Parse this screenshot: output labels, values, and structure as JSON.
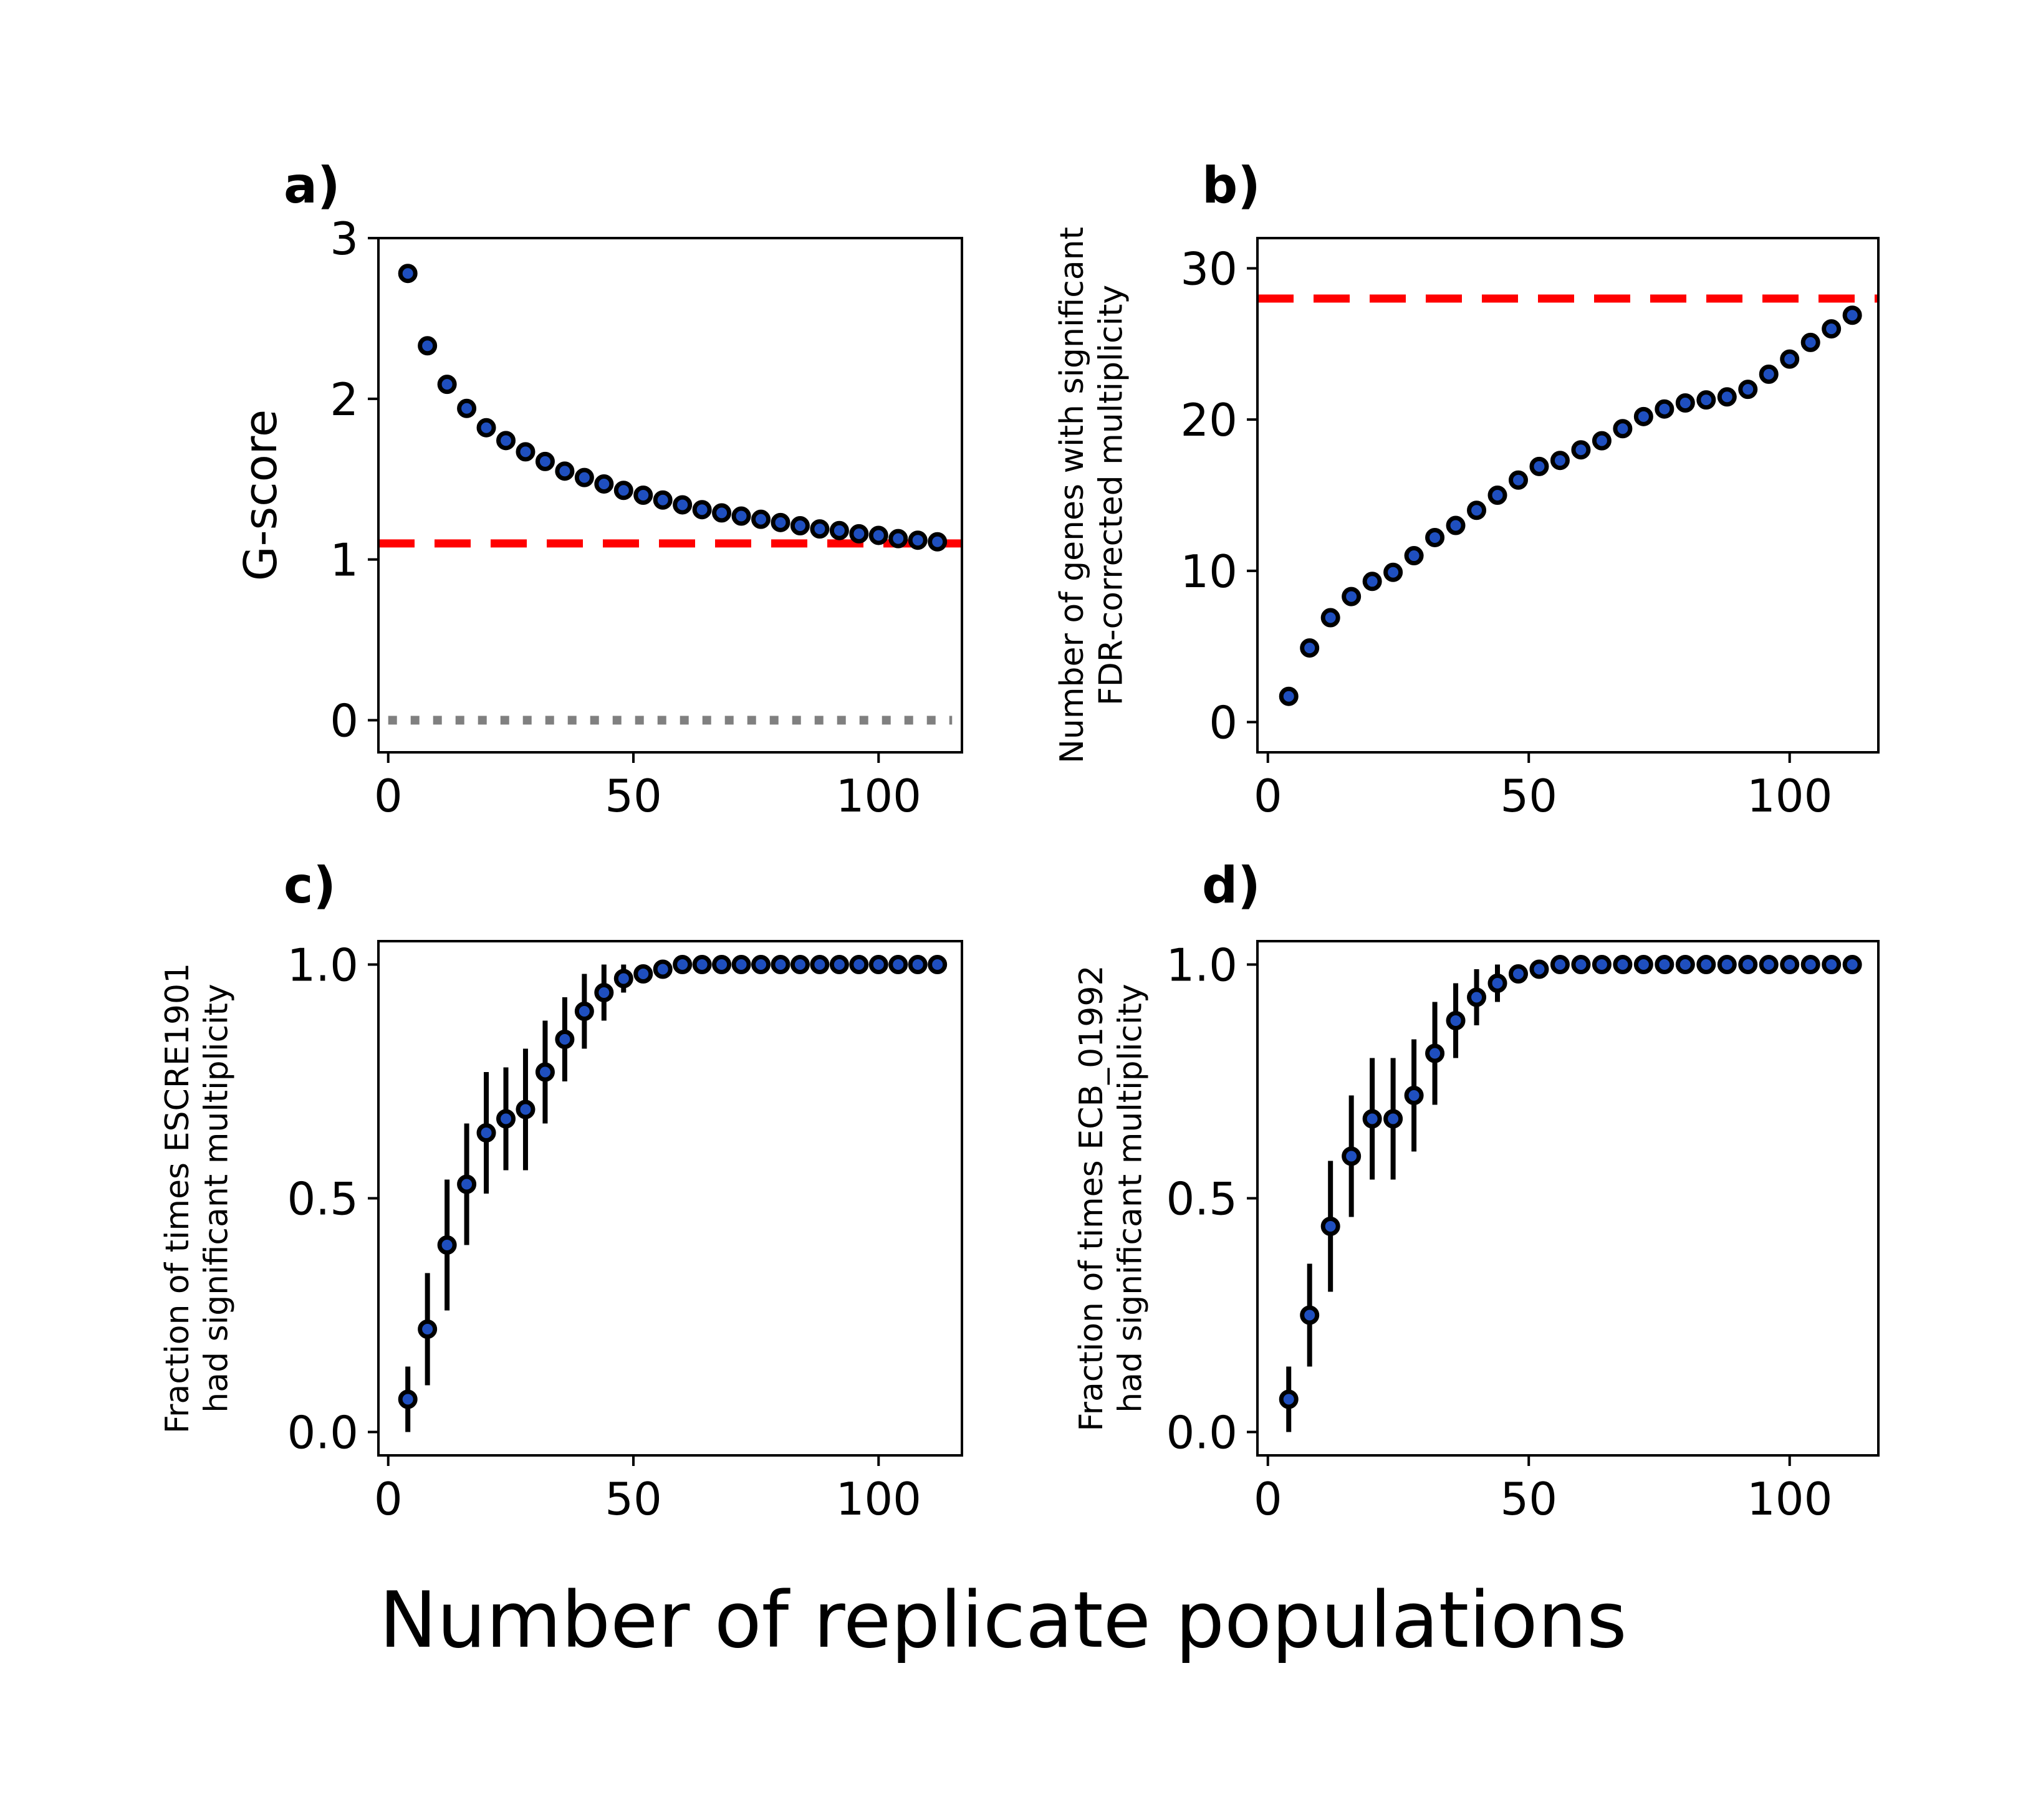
{
  "figure": {
    "xlabel": "Number of replicate populations"
  },
  "chart_data": [
    {
      "type": "scatter",
      "panel_label": "a)",
      "title": "",
      "xlabel": "",
      "ylabel": "G-score",
      "xlim": [
        -2,
        117
      ],
      "ylim": [
        -0.2,
        3
      ],
      "xticks": [
        0,
        50,
        100
      ],
      "yticks": [
        0,
        1,
        2,
        3
      ],
      "xtick_labels": [
        "0",
        "50",
        "100"
      ],
      "ytick_labels": [
        "0",
        "1",
        "2",
        "3"
      ],
      "grid": false,
      "x": [
        4,
        8,
        12,
        16,
        20,
        24,
        28,
        32,
        36,
        40,
        44,
        48,
        52,
        56,
        60,
        64,
        68,
        72,
        76,
        80,
        84,
        88,
        92,
        96,
        100,
        104,
        108,
        112
      ],
      "y": [
        2.78,
        2.33,
        2.09,
        1.94,
        1.82,
        1.74,
        1.67,
        1.61,
        1.55,
        1.51,
        1.47,
        1.43,
        1.4,
        1.37,
        1.34,
        1.31,
        1.29,
        1.27,
        1.25,
        1.23,
        1.21,
        1.19,
        1.18,
        1.16,
        1.15,
        1.13,
        1.12,
        1.11
      ],
      "yerr": [
        0.04,
        0.02,
        0.02,
        0.01,
        0.01,
        0.01,
        0.01,
        0.01,
        0.01,
        0.01,
        0.01,
        0.01,
        0.01,
        0.01,
        0.01,
        0.01,
        0.01,
        0.01,
        0.01,
        0.01,
        0.01,
        0.01,
        0.01,
        0.01,
        0.01,
        0.01,
        0.01,
        0.01
      ],
      "hlines": [
        {
          "y": 1.1,
          "color": "#ff0000",
          "style": "dashed"
        },
        {
          "y": 0,
          "color": "#808080",
          "style": "dotted",
          "x_from": 0,
          "x_to": 115
        }
      ],
      "marker_color": "#1f4fbf"
    },
    {
      "type": "scatter",
      "panel_label": "b)",
      "title": "",
      "xlabel": "",
      "ylabel": "Number of genes with significant\nFDR-corrected multiplicity",
      "xlim": [
        -2,
        117
      ],
      "ylim": [
        -2,
        32
      ],
      "xticks": [
        0,
        50,
        100
      ],
      "yticks": [
        0,
        10,
        20,
        30
      ],
      "xtick_labels": [
        "0",
        "50",
        "100"
      ],
      "ytick_labels": [
        "0",
        "10",
        "20",
        "30"
      ],
      "grid": false,
      "x": [
        4,
        8,
        12,
        16,
        20,
        24,
        28,
        32,
        36,
        40,
        44,
        48,
        52,
        56,
        60,
        64,
        68,
        72,
        76,
        80,
        84,
        88,
        92,
        96,
        100,
        104,
        108,
        112
      ],
      "y": [
        1.7,
        4.9,
        6.9,
        8.3,
        9.3,
        9.9,
        11.0,
        12.2,
        13.0,
        14.0,
        15.0,
        16.0,
        16.9,
        17.3,
        18.0,
        18.6,
        19.4,
        20.2,
        20.7,
        21.1,
        21.3,
        21.5,
        22.0,
        23.0,
        24.0,
        25.1,
        26.0,
        26.9
      ],
      "hlines": [
        {
          "y": 28,
          "color": "#ff0000",
          "style": "dashed"
        }
      ],
      "marker_color": "#1f4fbf"
    },
    {
      "type": "scatter",
      "panel_label": "c)",
      "title": "",
      "xlabel": "",
      "ylabel": "Fraction of times ESCRE1901\nhad significant multiplicity",
      "xlim": [
        -2,
        117
      ],
      "ylim": [
        -0.05,
        1.05
      ],
      "xticks": [
        0,
        50,
        100
      ],
      "yticks": [
        0,
        0.5,
        1
      ],
      "xtick_labels": [
        "0",
        "50",
        "100"
      ],
      "ytick_labels": [
        "0.0",
        "0.5",
        "1.0"
      ],
      "grid": false,
      "x": [
        4,
        8,
        12,
        16,
        20,
        24,
        28,
        32,
        36,
        40,
        44,
        48,
        52,
        56,
        60,
        64,
        68,
        72,
        76,
        80,
        84,
        88,
        92,
        96,
        100,
        104,
        108,
        112
      ],
      "y": [
        0.07,
        0.22,
        0.4,
        0.53,
        0.64,
        0.67,
        0.69,
        0.77,
        0.84,
        0.9,
        0.94,
        0.97,
        0.98,
        0.99,
        1.0,
        1.0,
        1.0,
        1.0,
        1.0,
        1.0,
        1.0,
        1.0,
        1.0,
        1.0,
        1.0,
        1.0,
        1.0,
        1.0
      ],
      "yerr": [
        0.07,
        0.12,
        0.14,
        0.13,
        0.13,
        0.11,
        0.13,
        0.11,
        0.09,
        0.08,
        0.06,
        0.03,
        0.02,
        0.01,
        0.0,
        0.0,
        0.0,
        0.0,
        0.0,
        0.0,
        0.0,
        0.0,
        0.0,
        0.0,
        0.0,
        0.0,
        0.0,
        0.0
      ],
      "marker_color": "#1f4fbf"
    },
    {
      "type": "scatter",
      "panel_label": "d)",
      "title": "",
      "xlabel": "",
      "ylabel": "Fraction of times ECB_01992\nhad significant multiplicity",
      "xlim": [
        -2,
        117
      ],
      "ylim": [
        -0.05,
        1.05
      ],
      "xticks": [
        0,
        50,
        100
      ],
      "yticks": [
        0,
        0.5,
        1
      ],
      "xtick_labels": [
        "0",
        "50",
        "100"
      ],
      "ytick_labels": [
        "0.0",
        "0.5",
        "1.0"
      ],
      "grid": false,
      "x": [
        4,
        8,
        12,
        16,
        20,
        24,
        28,
        32,
        36,
        40,
        44,
        48,
        52,
        56,
        60,
        64,
        68,
        72,
        76,
        80,
        84,
        88,
        92,
        96,
        100,
        104,
        108,
        112
      ],
      "y": [
        0.07,
        0.25,
        0.44,
        0.59,
        0.67,
        0.67,
        0.72,
        0.81,
        0.88,
        0.93,
        0.96,
        0.98,
        0.99,
        1.0,
        1.0,
        1.0,
        1.0,
        1.0,
        1.0,
        1.0,
        1.0,
        1.0,
        1.0,
        1.0,
        1.0,
        1.0,
        1.0,
        1.0
      ],
      "yerr": [
        0.07,
        0.11,
        0.14,
        0.13,
        0.13,
        0.13,
        0.12,
        0.11,
        0.08,
        0.06,
        0.04,
        0.02,
        0.01,
        0.0,
        0.0,
        0.0,
        0.0,
        0.0,
        0.0,
        0.0,
        0.0,
        0.0,
        0.0,
        0.0,
        0.0,
        0.0,
        0.0,
        0.0
      ],
      "marker_color": "#1f4fbf"
    }
  ]
}
